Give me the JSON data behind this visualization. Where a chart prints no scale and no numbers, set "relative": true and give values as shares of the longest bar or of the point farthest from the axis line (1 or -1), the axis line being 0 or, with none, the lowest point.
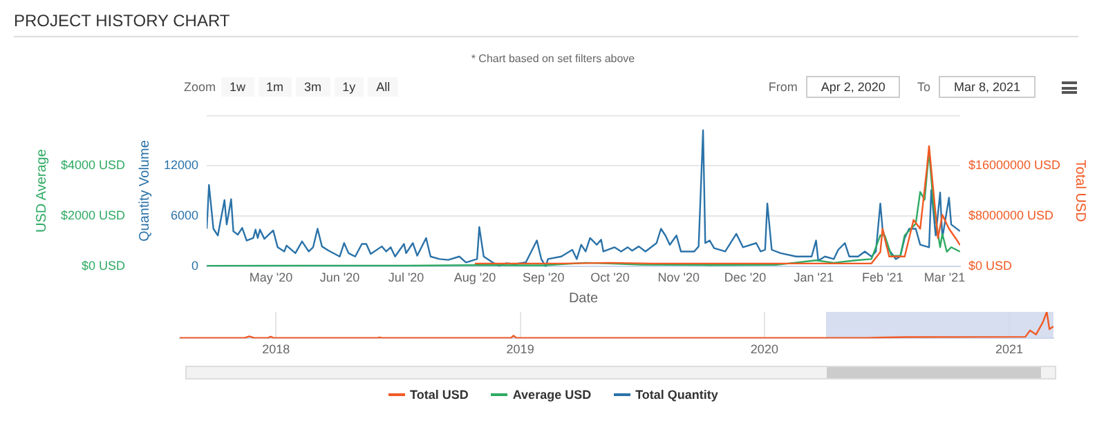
{
  "chart_data": [
    {
      "type": "line",
      "title": "PROJECT HISTORY CHART",
      "subtitle": "* Chart based on set filters above",
      "xlabel": "Date",
      "ylabel": "Quantity Volume",
      "y2label": "USD Average",
      "y3label": "Total USD",
      "annotations": [
        "Zoom",
        "1w",
        "1m",
        "3m",
        "1y",
        "All",
        "From",
        "Apr 2, 2020",
        "To",
        "Mar 8, 2021"
      ],
      "xlim": [
        "2020-04-02",
        "2021-03-08"
      ],
      "xticks": [
        {
          "value": "2020-05-01",
          "label": "May '20"
        },
        {
          "value": "2020-06-01",
          "label": "Jun '20"
        },
        {
          "value": "2020-07-01",
          "label": "Jul '20"
        },
        {
          "value": "2020-08-01",
          "label": "Aug '20"
        },
        {
          "value": "2020-09-01",
          "label": "Sep '20"
        },
        {
          "value": "2020-10-01",
          "label": "Oct '20"
        },
        {
          "value": "2020-11-01",
          "label": "Nov '20"
        },
        {
          "value": "2020-12-01",
          "label": "Dec '20"
        },
        {
          "value": "2021-01-01",
          "label": "Jan '21"
        },
        {
          "value": "2021-02-01",
          "label": "Feb '21"
        },
        {
          "value": "2021-03-01",
          "label": "Mar '21"
        }
      ],
      "ylim": [
        0,
        18000
      ],
      "yticks": [
        0,
        6000,
        12000
      ],
      "y2lim": [
        0,
        6000
      ],
      "y2ticks": [
        {
          "value": 0,
          "label": "$0 USD"
        },
        {
          "value": 2000,
          "label": "$2000 USD"
        },
        {
          "value": 4000,
          "label": "$4000 USD"
        }
      ],
      "y3lim": [
        0,
        24000000
      ],
      "y3ticks": [
        {
          "value": 0,
          "label": "$0 USD"
        },
        {
          "value": 8000000,
          "label": "$8000000 USD"
        },
        {
          "value": 16000000,
          "label": "$16000000 USD"
        }
      ],
      "grid": "y",
      "legend": "bottom",
      "series": [
        {
          "name": "Total USD",
          "color": "#f15a24",
          "axis": "y3",
          "x": [
            "2020-08-01",
            "2020-09-10",
            "2020-10-01",
            "2020-10-20",
            "2020-11-15",
            "2020-12-15",
            "2021-01-10",
            "2021-01-27",
            "2021-01-31",
            "2021-02-01",
            "2021-02-04",
            "2021-02-11",
            "2021-02-15",
            "2021-02-18",
            "2021-02-21",
            "2021-02-22",
            "2021-02-24",
            "2021-02-26",
            "2021-02-28",
            "2021-03-03",
            "2021-03-06",
            "2021-03-08"
          ],
          "values": [
            500000,
            500000,
            600000,
            500000,
            500000,
            500000,
            500000,
            500000,
            2300000,
            6000000,
            1600000,
            1600000,
            7400000,
            6000000,
            15500000,
            19100000,
            11800000,
            4500000,
            8200000,
            6000000,
            4500000,
            3400000
          ]
        },
        {
          "name": "Average USD",
          "color": "#2eaa63",
          "axis": "y2",
          "x": [
            "2020-04-02",
            "2020-05-15",
            "2020-07-01",
            "2020-08-01",
            "2020-09-01",
            "2020-09-20",
            "2020-09-28",
            "2020-10-15",
            "2020-11-15",
            "2020-12-15",
            "2021-01-02",
            "2021-01-10",
            "2021-01-20",
            "2021-01-27",
            "2021-01-31",
            "2021-02-02",
            "2021-02-05",
            "2021-02-09",
            "2021-02-11",
            "2021-02-16",
            "2021-02-18",
            "2021-02-20",
            "2021-02-22",
            "2021-02-24",
            "2021-02-27",
            "2021-02-28",
            "2021-03-02",
            "2021-03-04",
            "2021-03-08"
          ],
          "values": [
            30,
            40,
            40,
            60,
            50,
            150,
            130,
            80,
            60,
            70,
            250,
            150,
            250,
            300,
            1240,
            1240,
            430,
            430,
            1240,
            1700,
            2960,
            2650,
            4570,
            2420,
            770,
            1300,
            590,
            770,
            590
          ]
        },
        {
          "name": "Total Quantity",
          "color": "#2a72a8",
          "axis": "y",
          "x": [
            "2020-04-02",
            "2020-04-03",
            "2020-04-05",
            "2020-04-07",
            "2020-04-10",
            "2020-04-11",
            "2020-04-13",
            "2020-04-14",
            "2020-04-16",
            "2020-04-18",
            "2020-04-20",
            "2020-04-23",
            "2020-04-24",
            "2020-04-25",
            "2020-04-26",
            "2020-04-28",
            "2020-05-02",
            "2020-05-04",
            "2020-05-07",
            "2020-05-08",
            "2020-05-12",
            "2020-05-15",
            "2020-05-18",
            "2020-05-20",
            "2020-05-22",
            "2020-05-24",
            "2020-05-27",
            "2020-06-01",
            "2020-06-03",
            "2020-06-05",
            "2020-06-08",
            "2020-06-11",
            "2020-06-13",
            "2020-06-15",
            "2020-06-20",
            "2020-06-22",
            "2020-06-24",
            "2020-06-26",
            "2020-06-30",
            "2020-07-01",
            "2020-07-04",
            "2020-07-06",
            "2020-07-10",
            "2020-07-12",
            "2020-07-16",
            "2020-07-20",
            "2020-07-25",
            "2020-07-28",
            "2020-08-02",
            "2020-08-03",
            "2020-08-05",
            "2020-08-09",
            "2020-08-12",
            "2020-08-15",
            "2020-08-19",
            "2020-08-24",
            "2020-08-29",
            "2020-08-31",
            "2020-09-02",
            "2020-09-03",
            "2020-09-09",
            "2020-09-14",
            "2020-09-16",
            "2020-09-18",
            "2020-09-20",
            "2020-09-22",
            "2020-09-25",
            "2020-09-27",
            "2020-09-28",
            "2020-10-03",
            "2020-10-06",
            "2020-10-09",
            "2020-10-11",
            "2020-10-14",
            "2020-10-17",
            "2020-10-22",
            "2020-10-24",
            "2020-10-26",
            "2020-10-28",
            "2020-10-31",
            "2020-11-02",
            "2020-11-08",
            "2020-11-10",
            "2020-11-12",
            "2020-11-13",
            "2020-11-15",
            "2020-11-17",
            "2020-11-22",
            "2020-11-27",
            "2020-11-30",
            "2020-12-06",
            "2020-12-08",
            "2020-12-10",
            "2020-12-11",
            "2020-12-13",
            "2020-12-17",
            "2020-12-24",
            "2020-12-31",
            "2021-01-02",
            "2021-01-03",
            "2021-01-06",
            "2021-01-10",
            "2021-01-12",
            "2021-01-15",
            "2021-01-17",
            "2021-01-21",
            "2021-01-24",
            "2021-01-27",
            "2021-01-29",
            "2021-01-31",
            "2021-02-01",
            "2021-02-03",
            "2021-02-07",
            "2021-02-09",
            "2021-02-11",
            "2021-02-13",
            "2021-02-16",
            "2021-02-18",
            "2021-02-22",
            "2021-02-23",
            "2021-02-25",
            "2021-02-27",
            "2021-02-28",
            "2021-03-03",
            "2021-03-04",
            "2021-03-08"
          ],
          "values": [
            4500,
            9700,
            4500,
            3700,
            7900,
            5000,
            8000,
            4200,
            3800,
            4600,
            3100,
            3400,
            4400,
            3400,
            4400,
            3300,
            4300,
            2300,
            1800,
            2500,
            1600,
            3000,
            1800,
            2300,
            4500,
            2400,
            1900,
            1200,
            2800,
            1600,
            1200,
            2700,
            2700,
            1500,
            2400,
            1800,
            2300,
            1200,
            2700,
            1600,
            2800,
            1300,
            3400,
            1200,
            900,
            800,
            1200,
            500,
            900,
            4700,
            1200,
            500,
            100,
            400,
            300,
            500,
            3100,
            900,
            0,
            900,
            1200,
            2000,
            900,
            2600,
            1800,
            3400,
            2600,
            3200,
            1800,
            2300,
            1800,
            2300,
            1900,
            2400,
            1800,
            2800,
            4500,
            3700,
            2600,
            3700,
            1800,
            1800,
            2400,
            16200,
            2800,
            3100,
            2200,
            1800,
            3900,
            2300,
            2800,
            1800,
            2000,
            7500,
            2000,
            1600,
            1200,
            1200,
            3100,
            700,
            1200,
            900,
            2000,
            2800,
            1200,
            1200,
            1800,
            1200,
            1800,
            7500,
            4500,
            2300,
            900,
            1200,
            3400,
            4500,
            4500,
            2600,
            2300,
            9100,
            3700,
            8800,
            3400,
            8200,
            5000,
            4200
          ]
        }
      ]
    },
    {
      "type": "line",
      "relative": true,
      "grid": "x",
      "xlim": [
        "2017-08-10",
        "2021-03-08"
      ],
      "xticks": [
        {
          "value": "2018-01-01",
          "label": "2018"
        },
        {
          "value": "2019-01-01",
          "label": "2019"
        },
        {
          "value": "2020-01-01",
          "label": "2020"
        },
        {
          "value": "2021-01-01",
          "label": "2021"
        }
      ],
      "bands": [
        {
          "axis": "x",
          "from": "2020-04-02",
          "to": "2021-03-08",
          "color": "#ccd6eb"
        }
      ],
      "series": [
        {
          "color": "#f15a24",
          "x": [
            "2017-08-10",
            "2017-11-15",
            "2017-11-22",
            "2017-11-29",
            "2017-12-20",
            "2017-12-24",
            "2017-12-28",
            "2018-06-01",
            "2018-06-05",
            "2018-06-08",
            "2018-12-18",
            "2018-12-22",
            "2018-12-26",
            "2020-06-01",
            "2020-08-01",
            "2021-01-25",
            "2021-02-01",
            "2021-02-10",
            "2021-02-20",
            "2021-02-26",
            "2021-03-02",
            "2021-03-08"
          ],
          "values": [
            0.02,
            0.02,
            0.08,
            0.02,
            0.02,
            0.07,
            0.02,
            0.02,
            0.04,
            0.02,
            0.02,
            0.1,
            0.02,
            0.02,
            0.05,
            0.06,
            0.3,
            0.15,
            0.6,
            1,
            0.35,
            0.45
          ]
        }
      ]
    }
  ]
}
